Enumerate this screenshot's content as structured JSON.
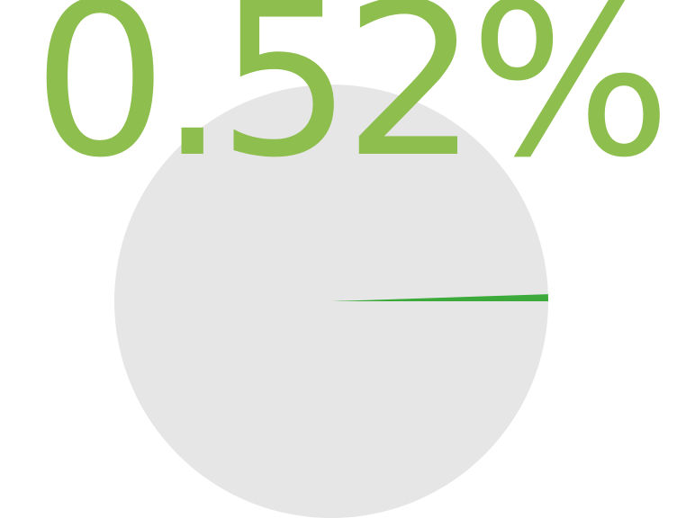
{
  "chart_data": {
    "type": "pie",
    "slices": [
      {
        "value": 0.52
      },
      {
        "value": 99.48
      }
    ],
    "highlight_label": "0.52%",
    "colors": {
      "highlight_slice": "#3BAA3B",
      "rest_slice": "#E6E6E6",
      "label": "#8EBE4E"
    }
  }
}
